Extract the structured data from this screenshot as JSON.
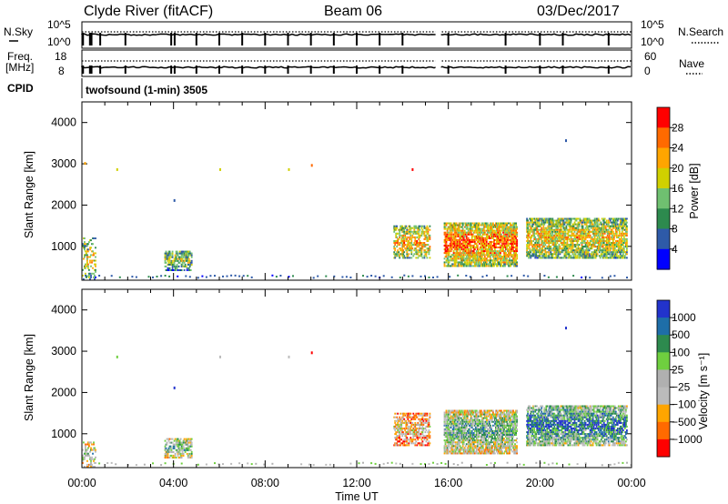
{
  "header": {
    "station": "Clyde River (fitACF)",
    "beam": "Beam 06",
    "date": "03/Dec/2017"
  },
  "noise_panel": {
    "left_label": "N.Sky",
    "right_label": "N.Search",
    "left_ticks": [
      "10^5",
      "10^0"
    ],
    "right_ticks": [
      "10^5",
      "10^0"
    ]
  },
  "freq_panel": {
    "left_label": "Freq.",
    "left_unit": "[MHz]",
    "right_label": "Nave",
    "left_ticks": [
      "18",
      "8"
    ],
    "right_ticks": [
      "60",
      "0"
    ]
  },
  "cpid": {
    "label": "CPID",
    "program": "twofsound (1-min) 3505"
  },
  "x_axis": {
    "label": "Time UT",
    "ticks": [
      "00:00",
      "04:00",
      "08:00",
      "12:00",
      "16:00",
      "20:00",
      "00:00"
    ]
  },
  "colors": {
    "power": [
      "#0000ff",
      "#2e5aa8",
      "#2d8a4e",
      "#6fc070",
      "#d0d000",
      "#ffa500",
      "#ff6a00",
      "#ff0000"
    ],
    "velocity": [
      "#ff0000",
      "#ff6a00",
      "#ffa500",
      "#bbbbbb",
      "#b0b0b0",
      "#6fcf3f",
      "#2d8a4e",
      "#1e6ea8",
      "#2233cc"
    ]
  },
  "chart_data": [
    {
      "type": "heatmap",
      "panel": "power",
      "ylabel": "Slant Range [km]",
      "xlabel": "Time UT",
      "xlim": [
        0,
        24
      ],
      "ylim": [
        180,
        4500
      ],
      "yticks": [
        "1000",
        "2000",
        "3000",
        "4000"
      ],
      "colorbar_label": "Power [dB]",
      "colorbar_ticks": [
        "4",
        "8",
        "12",
        "16",
        "20",
        "24",
        "28"
      ],
      "colorbar_range": [
        0,
        30
      ],
      "regions": [
        {
          "t": [
            0.0,
            0.6
          ],
          "r": [
            180,
            1200
          ],
          "density": 0.3,
          "level": 0.55
        },
        {
          "t": [
            3.6,
            4.8
          ],
          "r": [
            400,
            900
          ],
          "density": 0.55,
          "level": 0.45
        },
        {
          "t": [
            13.6,
            15.2
          ],
          "r": [
            700,
            1500
          ],
          "density": 0.5,
          "level": 0.65
        },
        {
          "t": [
            15.8,
            19.0
          ],
          "r": [
            500,
            1600
          ],
          "density": 0.7,
          "level": 0.75
        },
        {
          "t": [
            19.4,
            23.8
          ],
          "r": [
            700,
            1700
          ],
          "density": 0.65,
          "level": 0.6
        }
      ],
      "isolated_points": [
        {
          "t": 0.1,
          "r": 3000,
          "value": 20
        },
        {
          "t": 1.5,
          "r": 2850,
          "value": 18
        },
        {
          "t": 4.0,
          "r": 2100,
          "value": 4
        },
        {
          "t": 6.0,
          "r": 2850,
          "value": 18
        },
        {
          "t": 9.0,
          "r": 2850,
          "value": 18
        },
        {
          "t": 10.0,
          "r": 2950,
          "value": 26
        },
        {
          "t": 14.4,
          "r": 2850,
          "value": 28
        },
        {
          "t": 21.1,
          "r": 3550,
          "value": 4
        }
      ]
    },
    {
      "type": "heatmap",
      "panel": "velocity",
      "ylabel": "Slant Range [km]",
      "xlabel": "Time UT",
      "xlim": [
        0,
        24
      ],
      "ylim": [
        180,
        4500
      ],
      "yticks": [
        "1000",
        "2000",
        "3000",
        "4000"
      ],
      "colorbar_label": "Velocity [m s⁻¹]",
      "colorbar_ticks": [
        "1000",
        "500",
        "100",
        "25",
        "−25",
        "−100",
        "−500",
        "−1000"
      ],
      "colorbar_range": [
        -1000,
        1000
      ],
      "regions": [
        {
          "t": [
            0.0,
            0.6
          ],
          "r": [
            180,
            800
          ],
          "density": 0.3,
          "level": 0.5
        },
        {
          "t": [
            3.6,
            4.8
          ],
          "r": [
            400,
            900
          ],
          "density": 0.55,
          "level": 0.6
        },
        {
          "t": [
            13.6,
            15.2
          ],
          "r": [
            700,
            1500
          ],
          "density": 0.5,
          "level": 0.35
        },
        {
          "t": [
            15.8,
            19.0
          ],
          "r": [
            500,
            1600
          ],
          "density": 0.7,
          "level": 0.6
        },
        {
          "t": [
            19.4,
            23.8
          ],
          "r": [
            700,
            1700
          ],
          "density": 0.65,
          "level": 0.8
        }
      ],
      "isolated_points": [
        {
          "t": 1.5,
          "r": 2850,
          "value": 200
        },
        {
          "t": 4.0,
          "r": 2100,
          "value": 900
        },
        {
          "t": 6.0,
          "r": 2850,
          "value": -200
        },
        {
          "t": 9.0,
          "r": 2850,
          "value": -200
        },
        {
          "t": 10.0,
          "r": 2950,
          "value": -900
        },
        {
          "t": 21.1,
          "r": 3550,
          "value": 900
        }
      ]
    }
  ]
}
